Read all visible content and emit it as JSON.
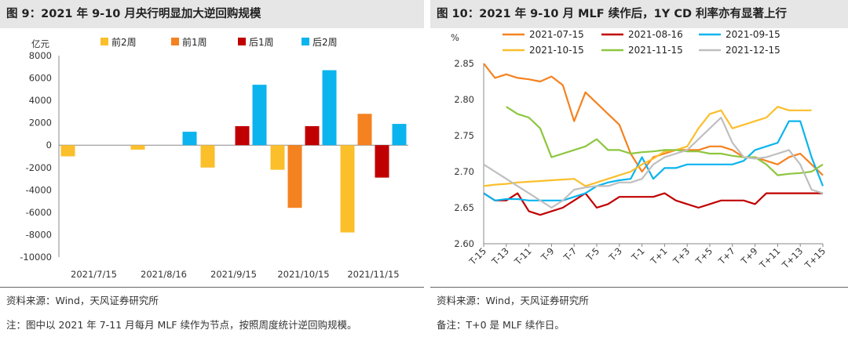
{
  "left": {
    "title": "图 9：2021 年 9-10 月央行明显加大逆回购规模",
    "source": "资料来源：Wind，天风证券研究所",
    "footnote": "注：图中以 2021 年 7-11 月每月 MLF 续作为节点，按照周度统计逆回购规模。"
  },
  "right": {
    "title": "图 10：2021 年 9-10 月 MLF 续作后，1Y CD 利率亦有显著上行",
    "source": "资料来源：Wind，天风证券研究所",
    "footnote": "备注：T+0 是 MLF 续作日。"
  },
  "chart_data": [
    {
      "type": "bar",
      "ylabel": "亿元",
      "ylim": [
        -10000,
        8000
      ],
      "yticks": [
        -10000,
        -8000,
        -6000,
        -4000,
        -2000,
        0,
        2000,
        4000,
        6000,
        8000
      ],
      "categories": [
        "2021/7/15",
        "2021/8/16",
        "2021/9/15",
        "2021/10/15",
        "2021/11/15"
      ],
      "series": [
        {
          "name": "前2周",
          "color": "#FBBF2C",
          "values": [
            -1000,
            -400,
            -2000,
            -2200,
            -7800
          ]
        },
        {
          "name": "前1周",
          "color": "#F58220",
          "values": [
            0,
            0,
            0,
            -5600,
            2800
          ]
        },
        {
          "name": "后1周",
          "color": "#C00000",
          "values": [
            0,
            0,
            1700,
            1700,
            -2900
          ]
        },
        {
          "name": "后2周",
          "color": "#0BB4EE",
          "values": [
            0,
            1200,
            5400,
            6700,
            1900
          ]
        }
      ]
    },
    {
      "type": "line",
      "ylabel": "%",
      "ylim": [
        2.6,
        2.85
      ],
      "yticks": [
        "2.60",
        "2.65",
        "2.70",
        "2.75",
        "2.80",
        "2.85"
      ],
      "x": [
        "T-15",
        "T-14",
        "T-13",
        "T-12",
        "T-11",
        "T-10",
        "T-9",
        "T-8",
        "T-7",
        "T-6",
        "T-5",
        "T-4",
        "T-3",
        "T-2",
        "T-1",
        "T+0",
        "T+1",
        "T+2",
        "T+3",
        "T+4",
        "T+5",
        "T+6",
        "T+7",
        "T+8",
        "T+9",
        "T+10",
        "T+11",
        "T+12",
        "T+13",
        "T+14",
        "T+15"
      ],
      "xticks": [
        "T-15",
        "T-13",
        "T-11",
        "T-9",
        "T-7",
        "T-5",
        "T-3",
        "T-1",
        "T+1",
        "T+3",
        "T+5",
        "T+7",
        "T+9",
        "T+11",
        "T+13",
        "T+15"
      ],
      "series": [
        {
          "name": "2021-07-15",
          "color": "#F58220",
          "values": [
            2.85,
            2.83,
            2.835,
            2.83,
            2.828,
            2.825,
            2.832,
            2.82,
            2.77,
            2.81,
            2.795,
            2.78,
            2.765,
            2.725,
            2.7,
            2.72,
            2.725,
            2.73,
            2.73,
            2.73,
            2.735,
            2.735,
            2.73,
            2.72,
            2.72,
            2.715,
            2.71,
            2.72,
            2.725,
            2.71,
            2.695
          ]
        },
        {
          "name": "2021-08-16",
          "color": "#C00000",
          "values": [
            2.67,
            2.66,
            2.66,
            2.67,
            2.645,
            2.64,
            2.645,
            2.65,
            2.66,
            2.67,
            2.65,
            2.655,
            2.665,
            2.665,
            2.665,
            2.665,
            2.67,
            2.66,
            2.655,
            2.65,
            2.655,
            2.66,
            2.66,
            2.66,
            2.655,
            2.67,
            2.67,
            2.67,
            2.67,
            2.67,
            2.67
          ]
        },
        {
          "name": "2021-09-15",
          "color": "#0BB4EE",
          "values": [
            2.67,
            2.66,
            2.662,
            2.662,
            2.66,
            2.66,
            2.66,
            2.66,
            2.665,
            2.67,
            2.68,
            2.685,
            2.688,
            2.69,
            2.72,
            2.69,
            2.705,
            2.705,
            2.71,
            2.71,
            2.71,
            2.71,
            2.71,
            2.715,
            2.73,
            2.735,
            2.74,
            2.77,
            2.77,
            2.72,
            2.68
          ]
        },
        {
          "name": "2021-10-15",
          "color": "#FBBF2C",
          "values": [
            2.68,
            2.682,
            2.683,
            2.685,
            2.686,
            2.687,
            2.688,
            2.689,
            2.69,
            2.68,
            2.685,
            2.69,
            2.695,
            2.7,
            2.71,
            2.718,
            2.728,
            2.73,
            2.735,
            2.76,
            2.78,
            2.785,
            2.76,
            2.765,
            2.77,
            2.775,
            2.79,
            2.785,
            2.785,
            2.785,
            null
          ]
        },
        {
          "name": "2021-11-15",
          "color": "#8DC63F",
          "values": [
            null,
            null,
            2.79,
            2.78,
            2.775,
            2.76,
            2.72,
            2.725,
            2.73,
            2.735,
            2.745,
            2.73,
            2.73,
            2.725,
            2.727,
            2.728,
            2.73,
            2.73,
            2.728,
            2.728,
            2.725,
            2.725,
            2.722,
            2.72,
            2.72,
            2.71,
            2.695,
            2.697,
            2.698,
            2.7,
            2.71
          ]
        },
        {
          "name": "2021-12-15",
          "color": "#BFBFBF",
          "values": [
            2.71,
            2.7,
            2.69,
            2.68,
            2.67,
            2.66,
            2.65,
            2.66,
            2.675,
            2.678,
            2.68,
            2.68,
            2.685,
            2.685,
            2.69,
            2.71,
            2.72,
            2.725,
            2.73,
            2.745,
            2.76,
            2.775,
            2.74,
            2.72,
            2.718,
            2.72,
            2.725,
            2.73,
            2.71,
            2.675,
            2.67
          ]
        }
      ]
    }
  ]
}
